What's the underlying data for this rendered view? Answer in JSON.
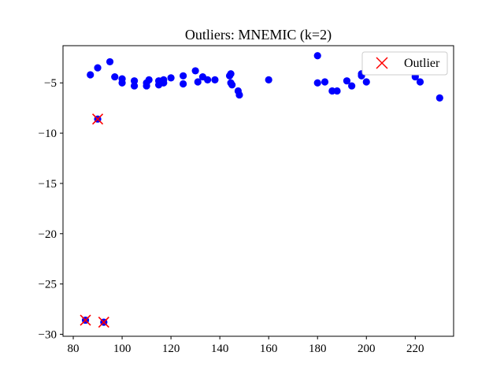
{
  "chart_data": {
    "type": "scatter",
    "title": "Outliers: MNEMIC (k=2)",
    "xlabel": "",
    "ylabel": "",
    "xlim": [
      75.8,
      235.7
    ],
    "ylim": [
      -30.2,
      -1.3
    ],
    "xticks": [
      80,
      100,
      120,
      140,
      160,
      180,
      200,
      220
    ],
    "yticks": [
      -5,
      -10,
      -15,
      -20,
      -25,
      -30
    ],
    "tick_labels_x": [
      "80",
      "100",
      "120",
      "140",
      "160",
      "180",
      "200",
      "220"
    ],
    "tick_labels_y": [
      "−5",
      "−10",
      "−15",
      "−20",
      "−25",
      "−30"
    ],
    "grid": false,
    "legend_position": "top-right",
    "colors": {
      "points": "#0000ff",
      "outlier": "#ff0000",
      "axis": "#000000"
    },
    "series": [
      {
        "marker": "circle",
        "points": [
          [
            85,
            -28.6
          ],
          [
            87,
            -4.2
          ],
          [
            90,
            -3.5
          ],
          [
            90,
            -8.6
          ],
          [
            92.5,
            -28.8
          ],
          [
            95,
            -2.9
          ],
          [
            97,
            -4.4
          ],
          [
            100,
            -4.6
          ],
          [
            100,
            -5.0
          ],
          [
            105,
            -4.8
          ],
          [
            105,
            -5.3
          ],
          [
            110,
            -5.0
          ],
          [
            110,
            -5.3
          ],
          [
            111,
            -4.7
          ],
          [
            115,
            -4.8
          ],
          [
            115,
            -5.2
          ],
          [
            117,
            -4.7
          ],
          [
            117,
            -5.0
          ],
          [
            120,
            -4.5
          ],
          [
            125,
            -4.3
          ],
          [
            125,
            -5.1
          ],
          [
            130,
            -3.8
          ],
          [
            131,
            -4.9
          ],
          [
            133,
            -4.4
          ],
          [
            135,
            -4.7
          ],
          [
            138,
            -4.7
          ],
          [
            144,
            -4.3
          ],
          [
            144.5,
            -4.1
          ],
          [
            144.5,
            -5.0
          ],
          [
            145,
            -5.2
          ],
          [
            147.5,
            -5.8
          ],
          [
            148,
            -6.2
          ],
          [
            160,
            -4.7
          ],
          [
            180,
            -2.3
          ],
          [
            180,
            -5.0
          ],
          [
            183,
            -4.9
          ],
          [
            186,
            -5.8
          ],
          [
            188,
            -5.8
          ],
          [
            192,
            -4.8
          ],
          [
            194,
            -5.3
          ],
          [
            198,
            -4.1
          ],
          [
            198,
            -4.3
          ],
          [
            200,
            -4.9
          ],
          [
            220,
            -4.2
          ],
          [
            220,
            -4.4
          ],
          [
            222,
            -4.9
          ],
          [
            230,
            -6.5
          ]
        ]
      },
      {
        "name": "Outlier",
        "marker": "x",
        "points": [
          [
            90,
            -8.6
          ],
          [
            85,
            -28.6
          ],
          [
            92.5,
            -28.8
          ]
        ]
      }
    ]
  }
}
